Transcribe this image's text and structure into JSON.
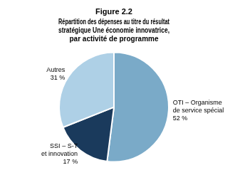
{
  "chart_data": {
    "type": "pie",
    "title": "Figure 2.2",
    "subtitle": "Répartition des dépenses au titre du résultat\nstratégique Une économie innovatrice,\npar activité de programme",
    "categories": [
      "OTI – Organisme\nde service spécial",
      "SSI – S-T\net innovation",
      "Autres"
    ],
    "values": [
      52,
      17,
      31
    ],
    "value_labels": [
      "52 %",
      "17 %",
      "31 %"
    ],
    "data_labels": true,
    "colors": [
      "#7aaac8",
      "#1a3a5c",
      "#aed0e6"
    ],
    "legend": false
  }
}
